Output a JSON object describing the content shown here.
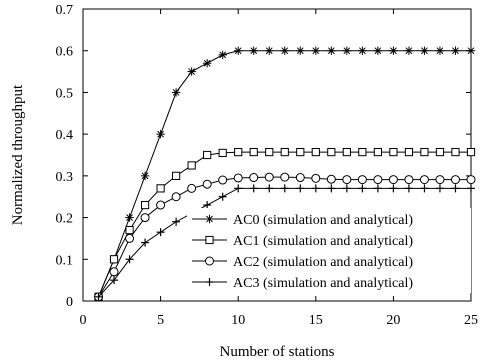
{
  "chart_data": {
    "type": "line",
    "xlabel": "Number of stations",
    "ylabel": "Normalized throughput",
    "xlim": [
      0,
      25
    ],
    "ylim": [
      0,
      0.7
    ],
    "xticks": [
      0,
      5,
      10,
      15,
      20,
      25
    ],
    "yticks": [
      0,
      0.1,
      0.2,
      0.3,
      0.4,
      0.5,
      0.6,
      0.7
    ],
    "xtick_labels": [
      "0",
      "5",
      "10",
      "15",
      "20",
      "25"
    ],
    "ytick_labels": [
      "0",
      "0.1",
      "0.2",
      "0.3",
      "0.4",
      "0.5",
      "0.6",
      "0.7"
    ],
    "grid": false,
    "legend_position": "lower-right",
    "x": [
      1,
      2,
      3,
      4,
      5,
      6,
      7,
      8,
      9,
      10,
      11,
      12,
      13,
      14,
      15,
      16,
      17,
      18,
      19,
      20,
      21,
      22,
      23,
      24,
      25
    ],
    "series": [
      {
        "name": "AC0 (simulation and analytical)",
        "marker": "star",
        "values": [
          0.01,
          0.1,
          0.2,
          0.3,
          0.4,
          0.5,
          0.55,
          0.57,
          0.59,
          0.6,
          0.6,
          0.6,
          0.6,
          0.6,
          0.6,
          0.6,
          0.6,
          0.6,
          0.6,
          0.6,
          0.6,
          0.6,
          0.6,
          0.6,
          0.6
        ]
      },
      {
        "name": "AC1 (simulation and analytical)",
        "marker": "square",
        "values": [
          0.01,
          0.1,
          0.17,
          0.23,
          0.27,
          0.3,
          0.325,
          0.35,
          0.355,
          0.357,
          0.357,
          0.357,
          0.357,
          0.357,
          0.357,
          0.357,
          0.357,
          0.357,
          0.357,
          0.357,
          0.357,
          0.357,
          0.357,
          0.357,
          0.357
        ]
      },
      {
        "name": "AC2 (simulation and analytical)",
        "marker": "circle",
        "values": [
          0.01,
          0.07,
          0.15,
          0.2,
          0.23,
          0.25,
          0.27,
          0.28,
          0.29,
          0.295,
          0.296,
          0.297,
          0.297,
          0.296,
          0.294,
          0.292,
          0.291,
          0.291,
          0.291,
          0.291,
          0.291,
          0.291,
          0.291,
          0.291,
          0.291
        ]
      },
      {
        "name": "AC3 (simulation and analytical)",
        "marker": "plus",
        "values": [
          0.01,
          0.05,
          0.1,
          0.14,
          0.165,
          0.19,
          0.21,
          0.23,
          0.25,
          0.27,
          0.27,
          0.27,
          0.27,
          0.27,
          0.27,
          0.27,
          0.27,
          0.27,
          0.27,
          0.27,
          0.27,
          0.27,
          0.27,
          0.27,
          0.27
        ]
      }
    ]
  }
}
